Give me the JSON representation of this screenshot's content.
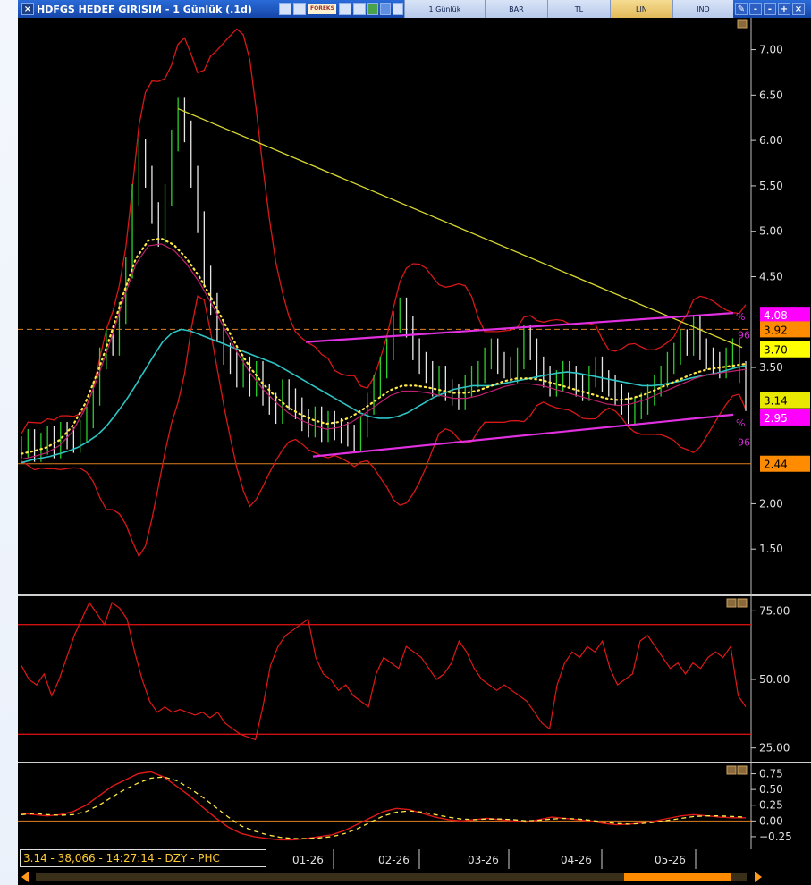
{
  "window": {
    "title": "HDFGS HEDEF GIRISIM - 1 Günlük (.1d)",
    "toolbar": {
      "forex_label": "FOREKS",
      "period_label": "1 Günlük",
      "chart_style_label": "BAR",
      "currency_label": "TL",
      "scale_label": "LIN",
      "indicator_label": "IND"
    }
  },
  "status_bar": {
    "text": "3.14 - 38,066 - 14:27:14 - DZY - PHC"
  },
  "colors": {
    "background": "#000000",
    "price_up": "#2bd02b",
    "price_down": "#e8e8e8",
    "bollinger": "#d81818",
    "ma_cyan": "#2ec4c4",
    "ma_dotted": "#ffe84a",
    "ma_magenta": "#c02070",
    "trendline": "#d8d830",
    "channel": "#e030e0",
    "rsi": "#e01818",
    "level_line": "#e08020"
  },
  "chart_data": [
    {
      "type": "line",
      "panel": "price",
      "x_tick_labels": [
        "01-26",
        "02-26",
        "03-26",
        "04-26",
        "05-26"
      ],
      "y_ticks": [
        7.0,
        6.5,
        6.0,
        5.5,
        5.0,
        4.5,
        3.5,
        2.0,
        1.5
      ],
      "ylim": [
        1.0,
        7.35
      ],
      "series": [
        {
          "values": [
            2.62,
            2.7,
            2.58,
            2.66,
            2.74,
            2.62,
            2.78,
            2.72,
            2.68,
            2.8,
            2.95,
            3.2,
            3.6,
            3.8,
            3.75,
            4.1,
            4.6,
            5.4,
            5.9,
            5.6,
            5.2,
            4.95,
            5.4,
            6.0,
            6.35,
            6.1,
            5.6,
            5.1,
            4.5,
            4.2,
            3.9,
            3.65,
            3.55,
            3.4,
            3.5,
            3.3,
            3.45,
            3.2,
            3.1,
            3.0,
            3.25,
            3.15,
            3.05,
            2.92,
            2.85,
            2.95,
            2.8,
            2.9,
            2.82,
            2.78,
            2.75,
            2.7,
            2.85,
            3.1,
            3.3,
            3.5,
            3.7,
            4.0,
            4.15,
            3.95,
            3.7,
            3.55,
            3.45,
            3.3,
            3.4,
            3.25,
            3.2,
            3.15,
            3.3,
            3.4,
            3.45,
            3.6,
            3.7,
            3.55,
            3.5,
            3.45,
            3.6,
            3.85,
            3.7,
            3.5,
            3.4,
            3.3,
            3.35,
            3.45,
            3.4,
            3.3,
            3.25,
            3.4,
            3.5,
            3.35,
            3.3,
            3.2,
            3.1,
            3.0,
            3.05,
            3.1,
            3.2,
            3.3,
            3.4,
            3.55,
            3.65,
            3.8,
            3.75,
            3.95,
            3.7,
            3.6,
            3.55,
            3.5,
            3.6,
            3.7,
            3.45,
            3.14
          ]
        },
        {
          "values": [
            2.45,
            2.48,
            2.5,
            2.52,
            2.55,
            2.58,
            2.62,
            2.68,
            2.75,
            2.85,
            2.98,
            3.12,
            3.28,
            3.45,
            3.62,
            3.78,
            3.88,
            3.92,
            3.9,
            3.86,
            3.82,
            3.78,
            3.74,
            3.7,
            3.66,
            3.62,
            3.58,
            3.54,
            3.48,
            3.42,
            3.36,
            3.3,
            3.24,
            3.18,
            3.12,
            3.06,
            3.0,
            2.96,
            2.94,
            2.94,
            2.96,
            3.0,
            3.06,
            3.12,
            3.18,
            3.22,
            3.26,
            3.28,
            3.3,
            3.3,
            3.3,
            3.32,
            3.34,
            3.36,
            3.38,
            3.4,
            3.42,
            3.44,
            3.45,
            3.44,
            3.42,
            3.4,
            3.38,
            3.36,
            3.34,
            3.32,
            3.3,
            3.3,
            3.31,
            3.33,
            3.35,
            3.38,
            3.4,
            3.42,
            3.44,
            3.47,
            3.5,
            3.52
          ]
        },
        {
          "values": [
            2.55,
            2.58,
            2.62,
            2.7,
            2.85,
            3.1,
            3.45,
            3.85,
            4.3,
            4.7,
            4.9,
            4.92,
            4.85,
            4.7,
            4.5,
            4.25,
            3.98,
            3.72,
            3.5,
            3.32,
            3.18,
            3.06,
            2.98,
            2.92,
            2.88,
            2.9,
            2.96,
            3.05,
            3.15,
            3.25,
            3.3,
            3.3,
            3.28,
            3.25,
            3.22,
            3.22,
            3.25,
            3.3,
            3.35,
            3.38,
            3.38,
            3.36,
            3.32,
            3.28,
            3.24,
            3.2,
            3.16,
            3.14,
            3.16,
            3.2,
            3.26,
            3.32,
            3.38,
            3.44,
            3.48,
            3.5,
            3.52,
            3.54
          ]
        }
      ],
      "annotations": [
        "%",
        "96",
        "%",
        "96"
      ],
      "price_labels": [
        {
          "text": "4.08",
          "color": "#ff00ff"
        },
        {
          "text": "3.92",
          "color": "#ff8c00"
        },
        {
          "text": "3.70",
          "color": "#ffff00"
        },
        {
          "text": "3.14",
          "color": "#e8e800"
        },
        {
          "text": "2.95",
          "color": "#ff00ff"
        },
        {
          "text": "2.44",
          "color": "#ff8c00"
        }
      ],
      "horizontal_levels": [
        3.92,
        2.44
      ]
    },
    {
      "type": "line",
      "panel": "rsi",
      "y_ticks": [
        75.0,
        50.0,
        25.0
      ],
      "ylim": [
        20,
        80
      ],
      "reference_lines": [
        70,
        30
      ],
      "series": [
        {
          "values": [
            55,
            50,
            48,
            52,
            44,
            50,
            58,
            66,
            72,
            78,
            74,
            70,
            78,
            76,
            72,
            60,
            50,
            42,
            38,
            40,
            38,
            39,
            38,
            37,
            38,
            36,
            38,
            34,
            32,
            30,
            29,
            28,
            40,
            55,
            62,
            66,
            68,
            70,
            72,
            58,
            52,
            50,
            46,
            48,
            44,
            42,
            40,
            52,
            58,
            56,
            54,
            62,
            60,
            58,
            54,
            50,
            52,
            56,
            64,
            60,
            54,
            50,
            48,
            46,
            48,
            46,
            44,
            42,
            38,
            34,
            32,
            48,
            56,
            60,
            58,
            62,
            60,
            64,
            54,
            48,
            50,
            52,
            64,
            66,
            62,
            58,
            54,
            56,
            52,
            56,
            54,
            58,
            60,
            58,
            62,
            44,
            40
          ]
        }
      ]
    },
    {
      "type": "line",
      "panel": "oscillator",
      "y_ticks": [
        0.75,
        0.5,
        0.25,
        0.0,
        -0.25
      ],
      "ylim": [
        -0.45,
        0.9
      ],
      "series": [
        {
          "values": [
            0.12,
            0.1,
            0.08,
            0.1,
            0.15,
            0.25,
            0.4,
            0.55,
            0.65,
            0.75,
            0.78,
            0.7,
            0.55,
            0.4,
            0.22,
            0.05,
            -0.1,
            -0.2,
            -0.25,
            -0.28,
            -0.3,
            -0.3,
            -0.28,
            -0.25,
            -0.22,
            -0.15,
            -0.05,
            0.05,
            0.15,
            0.2,
            0.18,
            0.12,
            0.06,
            0.02,
            0.0,
            0.02,
            0.04,
            0.02,
            0.0,
            -0.02,
            0.02,
            0.06,
            0.04,
            0.02,
            0.0,
            -0.04,
            -0.06,
            -0.05,
            -0.03,
            0.0,
            0.04,
            0.08,
            0.1,
            0.08,
            0.06,
            0.05,
            0.05
          ]
        },
        {
          "values": [
            0.1,
            0.12,
            0.1,
            0.09,
            0.1,
            0.15,
            0.25,
            0.38,
            0.5,
            0.6,
            0.68,
            0.7,
            0.64,
            0.52,
            0.38,
            0.22,
            0.06,
            -0.08,
            -0.16,
            -0.22,
            -0.26,
            -0.28,
            -0.28,
            -0.27,
            -0.25,
            -0.2,
            -0.12,
            -0.02,
            0.08,
            0.14,
            0.16,
            0.14,
            0.1,
            0.06,
            0.03,
            0.02,
            0.03,
            0.03,
            0.02,
            0.0,
            0.01,
            0.03,
            0.04,
            0.03,
            0.01,
            -0.02,
            -0.04,
            -0.05,
            -0.04,
            -0.02,
            0.01,
            0.04,
            0.07,
            0.08,
            0.08,
            0.07,
            0.06
          ]
        }
      ]
    }
  ]
}
